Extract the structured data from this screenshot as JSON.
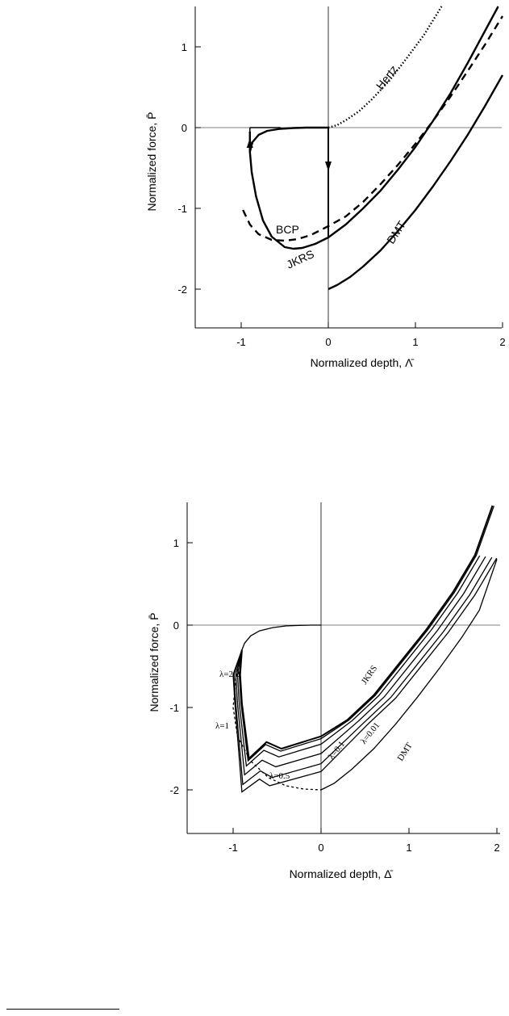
{
  "chart_data": [
    {
      "type": "line",
      "xlabel": "Normalized depth, Λ̄",
      "ylabel": "Normalized force, P̄",
      "xlim": [
        -1.55,
        2.0
      ],
      "ylim": [
        -2.5,
        1.5
      ],
      "xticks": [
        "-1",
        "0",
        "1",
        "2"
      ],
      "xtick_values": [
        -1,
        0,
        1,
        2
      ],
      "yticks": [
        "1",
        "0",
        "-1",
        "-2"
      ],
      "ytick_values": [
        1,
        0,
        -1,
        -2
      ],
      "grid": false,
      "series": [
        {
          "name": "Hertz",
          "style": "dotted",
          "x": [
            0,
            0.1,
            0.2,
            0.35,
            0.5,
            0.7,
            0.9,
            1.1,
            1.3
          ],
          "y": [
            0,
            0.03,
            0.09,
            0.2,
            0.35,
            0.58,
            0.86,
            1.15,
            1.5
          ]
        },
        {
          "name": "JKRS",
          "style": "solid-thick",
          "x": [
            -0.9,
            -0.9,
            -0.88,
            -0.83,
            -0.75,
            -0.65,
            -0.5,
            -0.4,
            -0.3,
            -0.15,
            0,
            0.2,
            0.4,
            0.6,
            0.8,
            1.0,
            1.2,
            1.4,
            1.6,
            1.8,
            1.95
          ],
          "y": [
            -0.05,
            -0.3,
            -0.55,
            -0.85,
            -1.15,
            -1.35,
            -1.48,
            -1.5,
            -1.49,
            -1.44,
            -1.36,
            -1.2,
            -1.0,
            -0.78,
            -0.52,
            -0.24,
            0.08,
            0.42,
            0.8,
            1.2,
            1.5
          ]
        },
        {
          "name": "JKRS upper branch",
          "style": "solid-thick",
          "x": [
            -0.9,
            -0.87,
            -0.8,
            -0.7,
            -0.55,
            -0.4,
            -0.25,
            -0.1,
            0
          ],
          "y": [
            -0.3,
            -0.18,
            -0.09,
            -0.04,
            -0.015,
            -0.005,
            0,
            0,
            0
          ]
        },
        {
          "name": "BCP",
          "style": "dashed",
          "x": [
            -0.98,
            -0.9,
            -0.8,
            -0.65,
            -0.5,
            -0.35,
            -0.2,
            0,
            0.2,
            0.4,
            0.6,
            0.8,
            1.0,
            1.2,
            1.4,
            1.6,
            1.8,
            2.0
          ],
          "y": [
            -1.02,
            -1.2,
            -1.32,
            -1.39,
            -1.4,
            -1.38,
            -1.33,
            -1.22,
            -1.1,
            -0.92,
            -0.7,
            -0.46,
            -0.2,
            0.08,
            0.38,
            0.7,
            1.03,
            1.38
          ]
        },
        {
          "name": "DMT",
          "style": "solid-thick",
          "x": [
            0,
            0.1,
            0.25,
            0.4,
            0.6,
            0.8,
            1.0,
            1.2,
            1.4,
            1.6,
            1.8,
            2.0
          ],
          "y": [
            -2,
            -1.95,
            -1.85,
            -1.72,
            -1.52,
            -1.28,
            -1.02,
            -0.73,
            -0.42,
            -0.09,
            0.27,
            0.65
          ]
        }
      ],
      "annotations": [
        "Hertz",
        "BCP",
        "JKRS",
        "DMT"
      ]
    },
    {
      "type": "line",
      "xlabel": "Normalized depth, Δ̄",
      "ylabel": "Normalized force, P̄",
      "xlim": [
        -1.55,
        2.0
      ],
      "ylim": [
        -2.5,
        1.5
      ],
      "xticks": [
        "-1",
        "0",
        "1",
        "2"
      ],
      "xtick_values": [
        -1,
        0,
        1,
        2
      ],
      "yticks": [
        "1",
        "0",
        "-1",
        "-2"
      ],
      "ytick_values": [
        1,
        0,
        -1,
        -2
      ],
      "grid": false,
      "series": [
        {
          "name": "JKRS",
          "lambda": null,
          "xmin": -0.92,
          "ymin": -1.5,
          "xend": 1.95
        },
        {
          "name": "λ=2.2",
          "lambda": 2.2,
          "xmin": -0.93,
          "ymin": -1.53,
          "xend": 1.95
        },
        {
          "name": "λ=1",
          "lambda": 1,
          "xmin": -0.95,
          "ymin": -1.6,
          "xend": 1.98
        },
        {
          "name": "λ=0.5",
          "lambda": 0.5,
          "xmin": -0.97,
          "ymin": -1.72,
          "xend": 2.0
        },
        {
          "name": "λ=0.1",
          "lambda": 0.1,
          "xmin": -0.99,
          "ymin": -1.85,
          "xend": 2.0
        },
        {
          "name": "λ=0.01",
          "lambda": 0.01,
          "xmin": -1.0,
          "ymin": -1.95,
          "xend": 2.0
        },
        {
          "name": "DMT",
          "lambda": 0,
          "xmin": 0,
          "ymin": -2,
          "xend": 2.0
        }
      ],
      "annotations": [
        "λ=2.2",
        "λ=1",
        "λ=0.5",
        "λ=0.1",
        "λ=0.01",
        "JKRS",
        "DMT"
      ]
    }
  ]
}
